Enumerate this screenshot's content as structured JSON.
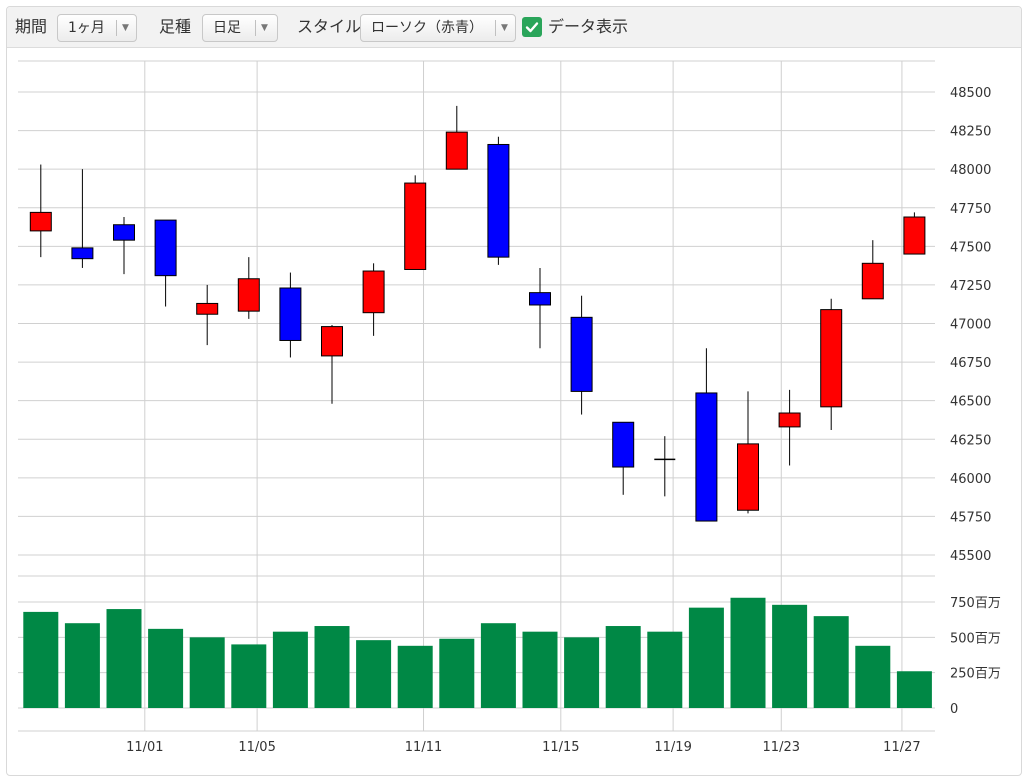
{
  "toolbar": {
    "period_label": "期間",
    "period_value": "1ヶ月",
    "bar_label": "足種",
    "bar_value": "日足",
    "style_label": "スタイル",
    "style_value": "ローソク（赤青）",
    "data_label": "データ表示",
    "data_checked": true,
    "check_color": "#2aa55a"
  },
  "chart_data": {
    "type": "candlestick",
    "price_axis": {
      "min": 45500,
      "max": 48500,
      "ticks": [
        "48500",
        "48250",
        "48000",
        "47750",
        "47500",
        "47250",
        "47000",
        "46750",
        "46500",
        "46250",
        "46000",
        "45750",
        "45500"
      ]
    },
    "volume_axis": {
      "min": 0,
      "max": 750,
      "unit_label": "百万",
      "ticks": [
        "750百万",
        "500百万",
        "250百万",
        "0"
      ]
    },
    "x_labels": [
      {
        "index": 2.5,
        "label": "11/01"
      },
      {
        "index": 5.2,
        "label": "11/05"
      },
      {
        "index": 9.2,
        "label": "11/11"
      },
      {
        "index": 12.5,
        "label": "11/15"
      },
      {
        "index": 15.2,
        "label": "11/19"
      },
      {
        "index": 17.8,
        "label": "11/23"
      },
      {
        "index": 20.7,
        "label": "11/27"
      }
    ],
    "up_color": "#ff0000",
    "down_color": "#0000ff",
    "volume_color": "#008845",
    "candles": [
      {
        "open": 47600,
        "high": 48030,
        "low": 47430,
        "close": 47720,
        "volume": 680
      },
      {
        "open": 47490,
        "high": 48000,
        "low": 47360,
        "close": 47420,
        "volume": 600
      },
      {
        "open": 47640,
        "high": 47690,
        "low": 47320,
        "close": 47540,
        "volume": 700
      },
      {
        "open": 47670,
        "high": 47670,
        "low": 47110,
        "close": 47310,
        "volume": 560
      },
      {
        "open": 47060,
        "high": 47250,
        "low": 46860,
        "close": 47130,
        "volume": 500
      },
      {
        "open": 47080,
        "high": 47430,
        "low": 47030,
        "close": 47290,
        "volume": 450
      },
      {
        "open": 47230,
        "high": 47330,
        "low": 46780,
        "close": 46890,
        "volume": 540
      },
      {
        "open": 46790,
        "high": 46990,
        "low": 46480,
        "close": 46980,
        "volume": 580
      },
      {
        "open": 47070,
        "high": 47390,
        "low": 46920,
        "close": 47340,
        "volume": 480
      },
      {
        "open": 47350,
        "high": 47960,
        "low": 47350,
        "close": 47910,
        "volume": 440
      },
      {
        "open": 48000,
        "high": 48410,
        "low": 48000,
        "close": 48240,
        "volume": 490
      },
      {
        "open": 48160,
        "high": 48210,
        "low": 47380,
        "close": 47430,
        "volume": 600
      },
      {
        "open": 47200,
        "high": 47360,
        "low": 46840,
        "close": 47120,
        "volume": 540
      },
      {
        "open": 47040,
        "high": 47180,
        "low": 46410,
        "close": 46560,
        "volume": 500
      },
      {
        "open": 46360,
        "high": 46360,
        "low": 45890,
        "close": 46070,
        "volume": 580
      },
      {
        "open": 46120,
        "high": 46270,
        "low": 45880,
        "close": 46120,
        "volume": 540
      },
      {
        "open": 46550,
        "high": 46840,
        "low": 45720,
        "close": 45720,
        "volume": 710
      },
      {
        "open": 45790,
        "high": 46560,
        "low": 45770,
        "close": 46220,
        "volume": 780
      },
      {
        "open": 46330,
        "high": 46570,
        "low": 46080,
        "close": 46420,
        "volume": 730
      },
      {
        "open": 46460,
        "high": 47160,
        "low": 46310,
        "close": 47090,
        "volume": 650
      },
      {
        "open": 47160,
        "high": 47540,
        "low": 47160,
        "close": 47390,
        "volume": 440
      },
      {
        "open": 47450,
        "high": 47720,
        "low": 47450,
        "close": 47690,
        "volume": 260
      }
    ]
  }
}
